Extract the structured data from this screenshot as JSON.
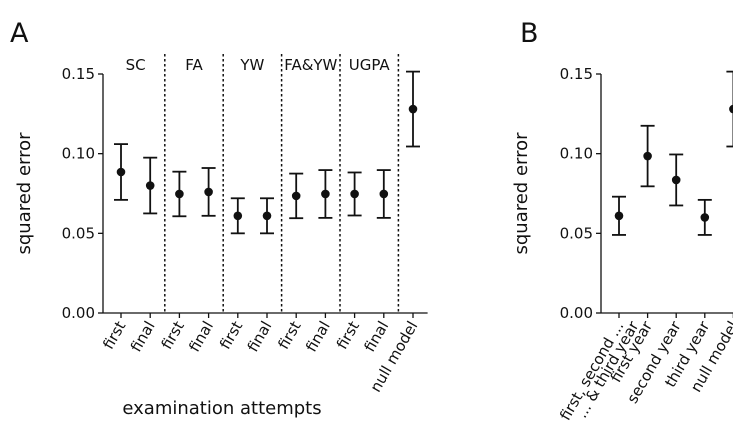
{
  "chart_data": [
    {
      "type": "errorbar",
      "panel": "A",
      "ylabel": "squared error",
      "xlabel": "examination attempts",
      "groups": [
        "SC",
        "FA",
        "YW",
        "FA&YW",
        "UGPA"
      ],
      "categories": [
        "first",
        "final",
        "first",
        "final",
        "first",
        "final",
        "first",
        "final",
        "first",
        "final",
        "null model"
      ],
      "values": [
        0.0885,
        0.08,
        0.0747,
        0.076,
        0.061,
        0.061,
        0.0735,
        0.0747,
        0.0747,
        0.0747,
        0.128
      ],
      "errors": [
        0.0175,
        0.0175,
        0.014,
        0.015,
        0.011,
        0.011,
        0.014,
        0.015,
        0.0135,
        0.015,
        0.0235
      ],
      "color": "#111111",
      "ylim": [
        0,
        0.15
      ],
      "yticks": [
        {
          "value": 0,
          "label": "0.00"
        },
        {
          "value": 0.05,
          "label": "0.05"
        },
        {
          "value": 0.1,
          "label": "0.10"
        },
        {
          "value": 0.15,
          "label": "0.15"
        }
      ]
    },
    {
      "type": "errorbar",
      "panel": "B",
      "ylabel": "squared error",
      "categories": [
        [
          "first, second ...",
          "... & third year"
        ],
        "first year",
        "second year",
        "third year",
        "null model"
      ],
      "values": [
        0.061,
        0.0985,
        0.0835,
        0.06,
        0.128
      ],
      "errors": [
        0.012,
        0.019,
        0.016,
        0.011,
        0.0235
      ],
      "color": "#111111",
      "ylim": [
        0,
        0.15
      ],
      "yticks": [
        {
          "value": 0,
          "label": "0.00"
        },
        {
          "value": 0.05,
          "label": "0.05"
        },
        {
          "value": 0.1,
          "label": "0.10"
        },
        {
          "value": 0.15,
          "label": "0.15"
        }
      ]
    }
  ]
}
